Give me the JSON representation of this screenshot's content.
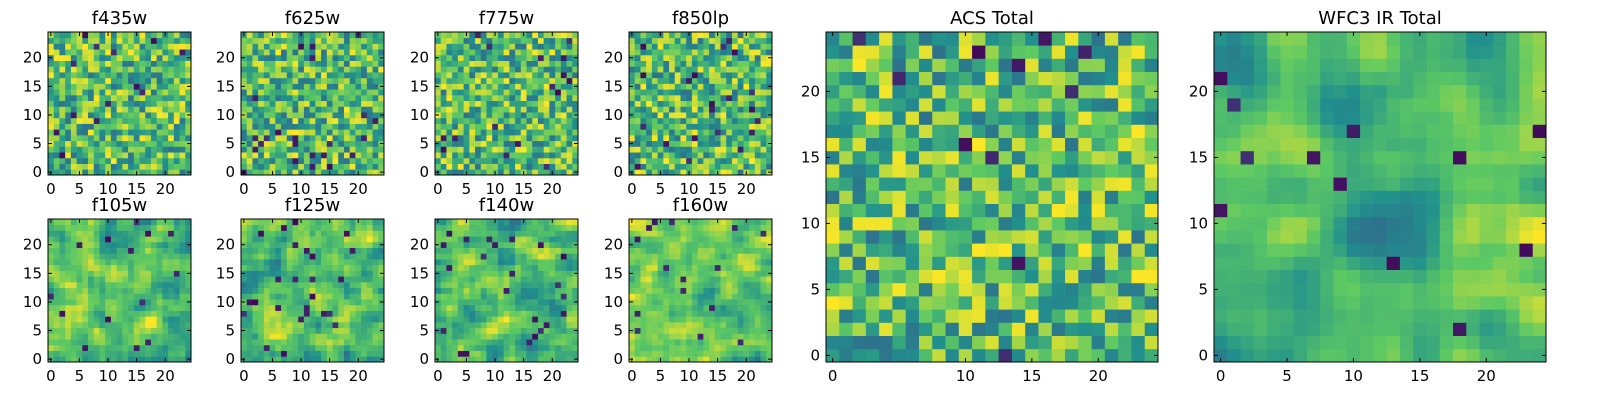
{
  "chart_data": [
    {
      "type": "heatmap",
      "title": "f435w",
      "grid_size": 25,
      "xticks": [
        "0",
        "5",
        "10",
        "15",
        "20"
      ],
      "yticks": [
        "0",
        "5",
        "10",
        "15",
        "20"
      ],
      "seed": 11,
      "smooth": 0,
      "outlier_rate": 0.03,
      "vmin": 0,
      "vmax": 1
    },
    {
      "type": "heatmap",
      "title": "f625w",
      "grid_size": 25,
      "xticks": [
        "0",
        "5",
        "10",
        "15",
        "20"
      ],
      "yticks": [
        "0",
        "5",
        "10",
        "15",
        "20"
      ],
      "seed": 23,
      "smooth": 0,
      "outlier_rate": 0.03,
      "vmin": 0,
      "vmax": 1
    },
    {
      "type": "heatmap",
      "title": "f775w",
      "grid_size": 25,
      "xticks": [
        "0",
        "5",
        "10",
        "15",
        "20"
      ],
      "yticks": [
        "0",
        "5",
        "10",
        "15",
        "20"
      ],
      "seed": 37,
      "smooth": 0,
      "outlier_rate": 0.03,
      "vmin": 0,
      "vmax": 1
    },
    {
      "type": "heatmap",
      "title": "f850lp",
      "grid_size": 25,
      "xticks": [
        "0",
        "5",
        "10",
        "15",
        "20"
      ],
      "yticks": [
        "0",
        "5",
        "10",
        "15",
        "20"
      ],
      "seed": 41,
      "smooth": 0,
      "outlier_rate": 0.04,
      "vmin": 0,
      "vmax": 1
    },
    {
      "type": "heatmap",
      "title": "f105w",
      "grid_size": 25,
      "xticks": [
        "0",
        "5",
        "10",
        "15",
        "20"
      ],
      "yticks": [
        "0",
        "5",
        "10",
        "15",
        "20"
      ],
      "seed": 53,
      "smooth": 1,
      "outlier_rate": 0.03,
      "vmin": 0,
      "vmax": 1
    },
    {
      "type": "heatmap",
      "title": "f125w",
      "grid_size": 25,
      "xticks": [
        "0",
        "5",
        "10",
        "15",
        "20"
      ],
      "yticks": [
        "0",
        "5",
        "10",
        "15",
        "20"
      ],
      "seed": 67,
      "smooth": 1,
      "outlier_rate": 0.03,
      "vmin": 0,
      "vmax": 1
    },
    {
      "type": "heatmap",
      "title": "f140w",
      "grid_size": 25,
      "xticks": [
        "0",
        "5",
        "10",
        "15",
        "20"
      ],
      "yticks": [
        "0",
        "5",
        "10",
        "15",
        "20"
      ],
      "seed": 71,
      "smooth": 1,
      "outlier_rate": 0.035,
      "vmin": 0,
      "vmax": 1
    },
    {
      "type": "heatmap",
      "title": "f160w",
      "grid_size": 25,
      "xticks": [
        "0",
        "5",
        "10",
        "15",
        "20"
      ],
      "yticks": [
        "0",
        "5",
        "10",
        "15",
        "20"
      ],
      "seed": 83,
      "smooth": 1,
      "outlier_rate": 0.03,
      "vmin": 0,
      "vmax": 1
    },
    {
      "type": "heatmap",
      "title": "ACS Total",
      "grid_size": 25,
      "xticks": [
        "0",
        "10",
        "15",
        "20"
      ],
      "yticks": [
        "0",
        "5",
        "10",
        "15",
        "20"
      ],
      "seed": 97,
      "smooth": 0,
      "outlier_rate": 0.025,
      "vmin": 0,
      "vmax": 1
    },
    {
      "type": "heatmap",
      "title": "WFC3 IR Total",
      "grid_size": 25,
      "xticks": [
        "0",
        "5",
        "10",
        "15",
        "20"
      ],
      "yticks": [
        "0",
        "5",
        "10",
        "15",
        "20"
      ],
      "seed": 109,
      "smooth": 2,
      "outlier_rate": 0.025,
      "vmin": 0,
      "vmax": 1
    }
  ],
  "colormap": [
    "#440154",
    "#3b528b",
    "#21908d",
    "#5dc963",
    "#fde725"
  ]
}
